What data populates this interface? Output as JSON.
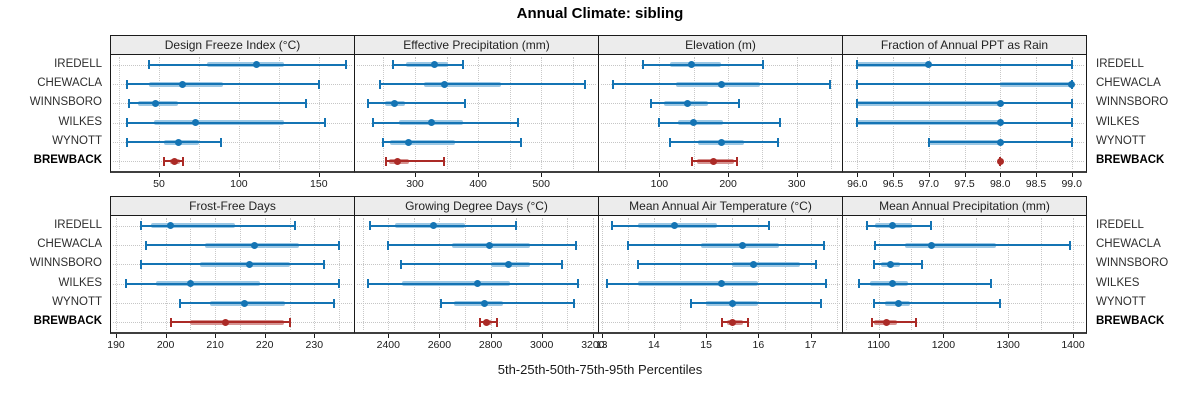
{
  "title": "Annual Climate: sibling",
  "caption": "5th-25th-50th-75th-95th Percentiles",
  "sites": [
    "IREDELL",
    "CHEWACLA",
    "WINNSBORO",
    "WILKES",
    "WYNOTT",
    "BREWBACK"
  ],
  "highlight_site": "BREWBACK",
  "percentiles_shown": [
    5,
    25,
    50,
    75,
    95
  ],
  "colors": {
    "series": "#1474b4",
    "series_band": "#9cc7e3",
    "highlight": "#ab2a26",
    "highlight_band": "#d69492",
    "grid": "#c9c9c9",
    "header_bg": "#ececec",
    "panel_border": "#1a1a1a"
  },
  "chart_data": {
    "type": "dotplot-percentiles",
    "title": "Annual Climate: sibling",
    "xlabel": "5th-25th-50th-75th-95th Percentiles",
    "legend_position": "none",
    "grid": "dotted",
    "layout": "2 rows x 4 columns",
    "panels": [
      {
        "label": "Design Freeze Index (°C)",
        "xlim": [
          20,
          172
        ],
        "ticks": [
          50,
          100,
          150
        ],
        "tick_labels": [
          "50",
          "100",
          "150"
        ],
        "gridlines": [
          25,
          50,
          75,
          100,
          125,
          150
        ],
        "values": {
          "IREDELL": [
            44,
            80,
            111,
            128,
            167
          ],
          "CHEWACLA": [
            30,
            44,
            65,
            90,
            150
          ],
          "WINNSBORO": [
            31,
            37,
            48,
            62,
            142
          ],
          "WILKES": [
            30,
            47,
            73,
            128,
            154
          ],
          "WYNOTT": [
            30,
            53,
            62,
            75,
            89
          ],
          "BREWBACK": [
            53,
            57,
            60,
            63,
            65
          ]
        }
      },
      {
        "label": "Effective Precipitation (mm)",
        "xlim": [
          205,
          590
        ],
        "ticks": [
          300,
          400,
          500
        ],
        "tick_labels": [
          "300",
          "400",
          "500"
        ],
        "gridlines": [
          250,
          300,
          350,
          400,
          450,
          500,
          550
        ],
        "values": {
          "IREDELL": [
            265,
            285,
            331,
            352,
            376
          ],
          "CHEWACLA": [
            245,
            315,
            347,
            437,
            570
          ],
          "WINNSBORO": [
            226,
            252,
            268,
            284,
            379
          ],
          "WILKES": [
            234,
            274,
            326,
            376,
            463
          ],
          "WYNOTT": [
            249,
            261,
            290,
            363,
            468
          ],
          "BREWBACK": [
            254,
            258,
            272,
            290,
            346
          ]
        }
      },
      {
        "label": "Elevation (m)",
        "xlim": [
          12,
          366
        ],
        "ticks": [
          100,
          200,
          300
        ],
        "tick_labels": [
          "100",
          "200",
          "300"
        ],
        "gridlines": [
          50,
          100,
          150,
          200,
          250,
          300,
          350
        ],
        "values": {
          "IREDELL": [
            76,
            115,
            146,
            190,
            251
          ],
          "CHEWACLA": [
            33,
            124,
            190,
            246,
            349
          ],
          "WINNSBORO": [
            88,
            107,
            141,
            171,
            216
          ],
          "WILKES": [
            100,
            127,
            150,
            193,
            276
          ],
          "WYNOTT": [
            116,
            156,
            190,
            224,
            272
          ],
          "BREWBACK": [
            147,
            154,
            179,
            208,
            213
          ]
        }
      },
      {
        "label": "Fraction of Annual PPT as Rain",
        "xlim": [
          95.8,
          99.2
        ],
        "ticks": [
          96.0,
          96.5,
          97.0,
          97.5,
          98.0,
          98.5,
          99.0
        ],
        "tick_labels": [
          "96.0",
          "96.5",
          "97.0",
          "97.5",
          "98.0",
          "98.5",
          "99.0"
        ],
        "gridlines": [
          96.0,
          96.5,
          97.0,
          97.5,
          98.0,
          98.5,
          99.0
        ],
        "values": {
          "IREDELL": [
            96,
            96,
            97,
            97,
            99
          ],
          "CHEWACLA": [
            96,
            98,
            99,
            99,
            99
          ],
          "WINNSBORO": [
            96,
            96,
            98,
            98,
            99
          ],
          "WILKES": [
            96,
            96,
            98,
            98,
            99
          ],
          "WYNOTT": [
            97,
            97,
            98,
            98,
            99
          ],
          "BREWBACK": [
            98,
            98,
            98,
            98,
            98
          ]
        }
      },
      {
        "label": "Frost-Free Days",
        "xlim": [
          189,
          238
        ],
        "ticks": [
          190,
          200,
          210,
          220,
          230
        ],
        "tick_labels": [
          "190",
          "200",
          "210",
          "220",
          "230"
        ],
        "gridlines": [
          190,
          195,
          200,
          205,
          210,
          215,
          220,
          225,
          230,
          235
        ],
        "values": {
          "IREDELL": [
            195,
            197,
            201,
            214,
            226
          ],
          "CHEWACLA": [
            196,
            208,
            218,
            227,
            235
          ],
          "WINNSBORO": [
            195,
            207,
            217,
            225,
            232
          ],
          "WILKES": [
            192,
            198,
            205,
            219,
            235
          ],
          "WYNOTT": [
            203,
            209,
            216,
            224,
            234
          ],
          "BREWBACK": [
            201,
            205,
            212,
            224,
            225
          ]
        }
      },
      {
        "label": "Growing Degree Days (°C)",
        "xlim": [
          2270,
          3220
        ],
        "ticks": [
          2400,
          2600,
          2800,
          3000,
          3200
        ],
        "tick_labels": [
          "2400",
          "2600",
          "2800",
          "3000",
          "3200"
        ],
        "gridlines": [
          2300,
          2400,
          2500,
          2600,
          2700,
          2800,
          2900,
          3000,
          3100,
          3200
        ],
        "values": {
          "IREDELL": [
            2330,
            2425,
            2575,
            2700,
            2900
          ],
          "CHEWACLA": [
            2400,
            2650,
            2795,
            2955,
            3135
          ],
          "WINNSBORO": [
            2450,
            2800,
            2870,
            2955,
            3080
          ],
          "WILKES": [
            2320,
            2455,
            2750,
            2875,
            3140
          ],
          "WYNOTT": [
            2605,
            2655,
            2775,
            2850,
            3125
          ],
          "BREWBACK": [
            2760,
            2770,
            2785,
            2805,
            2825
          ]
        }
      },
      {
        "label": "Mean Annual Air Temperature (°C)",
        "xlim": [
          12.95,
          17.6
        ],
        "ticks": [
          13,
          14,
          15,
          16,
          17
        ],
        "tick_labels": [
          "13",
          "14",
          "15",
          "16",
          "17"
        ],
        "gridlines": [
          13,
          13.5,
          14,
          14.5,
          15,
          15.5,
          16,
          16.5,
          17,
          17.5
        ],
        "values": {
          "IREDELL": [
            13.2,
            13.7,
            14.4,
            15.2,
            16.2
          ],
          "CHEWACLA": [
            13.5,
            14.9,
            15.7,
            16.4,
            17.25
          ],
          "WINNSBORO": [
            13.7,
            15.5,
            15.9,
            16.8,
            17.1
          ],
          "WILKES": [
            13.1,
            13.7,
            15.3,
            16.0,
            17.3
          ],
          "WYNOTT": [
            14.7,
            15.0,
            15.5,
            16.0,
            17.2
          ],
          "BREWBACK": [
            15.3,
            15.4,
            15.5,
            15.7,
            15.8
          ]
        }
      },
      {
        "label": "Mean Annual Precipitation (mm)",
        "xlim": [
          1045,
          1420
        ],
        "ticks": [
          1100,
          1200,
          1300,
          1400
        ],
        "tick_labels": [
          "1100",
          "1200",
          "1300",
          "1400"
        ],
        "gridlines": [
          1050,
          1100,
          1150,
          1200,
          1250,
          1300,
          1350,
          1400
        ],
        "values": {
          "IREDELL": [
            1082,
            1095,
            1121,
            1152,
            1181
          ],
          "CHEWACLA": [
            1094,
            1140,
            1181,
            1281,
            1396
          ],
          "WINNSBORO": [
            1092,
            1103,
            1118,
            1133,
            1167
          ],
          "WILKES": [
            1070,
            1087,
            1122,
            1146,
            1274
          ],
          "WYNOTT": [
            1092,
            1110,
            1130,
            1148,
            1287
          ],
          "BREWBACK": [
            1089,
            1093,
            1112,
            1128,
            1158
          ]
        }
      }
    ]
  }
}
